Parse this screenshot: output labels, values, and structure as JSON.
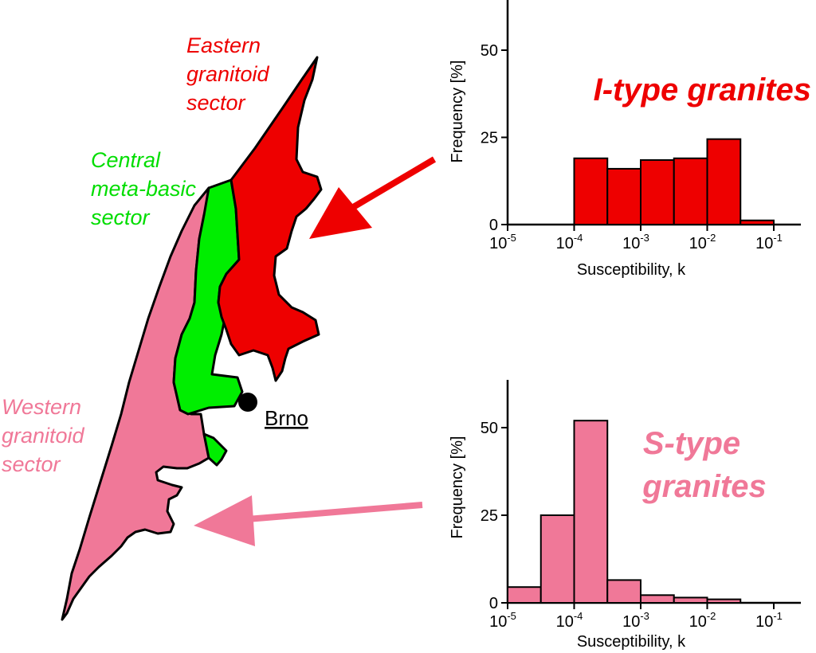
{
  "map": {
    "eastern_label": [
      "Eastern",
      "granitoid",
      "sector"
    ],
    "central_label": [
      "Central",
      "meta-basic",
      "sector"
    ],
    "western_label": [
      "Western",
      "granitoid",
      "sector"
    ],
    "city": "Brno",
    "colors": {
      "eastern": "#ee0000",
      "central": "#00ee00",
      "western": "#f07898"
    }
  },
  "chart_data": [
    {
      "type": "bar",
      "title": "I-type granites",
      "xlabel": "Susceptibility, k",
      "ylabel": "Frequency [%]",
      "x_scale": "log",
      "xlim": [
        "10^-5",
        "10^-1"
      ],
      "ylim": [
        0,
        60
      ],
      "yticks": [
        "0",
        "25",
        "50"
      ],
      "xticks": [
        {
          "base": "10",
          "exp": "-5"
        },
        {
          "base": "10",
          "exp": "-4"
        },
        {
          "base": "10",
          "exp": "-3"
        },
        {
          "base": "10",
          "exp": "-2"
        },
        {
          "base": "10",
          "exp": "-1"
        }
      ],
      "bins": [
        {
          "from": "10^-4",
          "to": "10^-3.5",
          "value": 19
        },
        {
          "from": "10^-3.5",
          "to": "10^-3",
          "value": 16
        },
        {
          "from": "10^-3",
          "to": "10^-2.5",
          "value": 18.5
        },
        {
          "from": "10^-2.5",
          "to": "10^-2",
          "value": 19
        },
        {
          "from": "10^-2",
          "to": "10^-1.5",
          "value": 24.5
        },
        {
          "from": "10^-1.5",
          "to": "10^-1",
          "value": 1.2
        }
      ],
      "color": "#ee0000"
    },
    {
      "type": "bar",
      "title": "S-type granites",
      "xlabel": "Susceptibility, k",
      "ylabel": "Frequency [%]",
      "x_scale": "log",
      "xlim": [
        "10^-5",
        "10^-1"
      ],
      "ylim": [
        0,
        64
      ],
      "yticks": [
        "0",
        "25",
        "50"
      ],
      "xticks": [
        {
          "base": "10",
          "exp": "-5"
        },
        {
          "base": "10",
          "exp": "-4"
        },
        {
          "base": "10",
          "exp": "-3"
        },
        {
          "base": "10",
          "exp": "-2"
        },
        {
          "base": "10",
          "exp": "-1"
        }
      ],
      "bins": [
        {
          "from": "10^-5",
          "to": "10^-4.5",
          "value": 4.5
        },
        {
          "from": "10^-4.5",
          "to": "10^-4",
          "value": 25
        },
        {
          "from": "10^-4",
          "to": "10^-3.5",
          "value": 52
        },
        {
          "from": "10^-3.5",
          "to": "10^-3",
          "value": 6.5
        },
        {
          "from": "10^-3",
          "to": "10^-2.5",
          "value": 2.2
        },
        {
          "from": "10^-2.5",
          "to": "10^-2",
          "value": 1.5
        },
        {
          "from": "10^-2",
          "to": "10^-1.5",
          "value": 1.0
        }
      ],
      "color": "#f07898"
    }
  ]
}
